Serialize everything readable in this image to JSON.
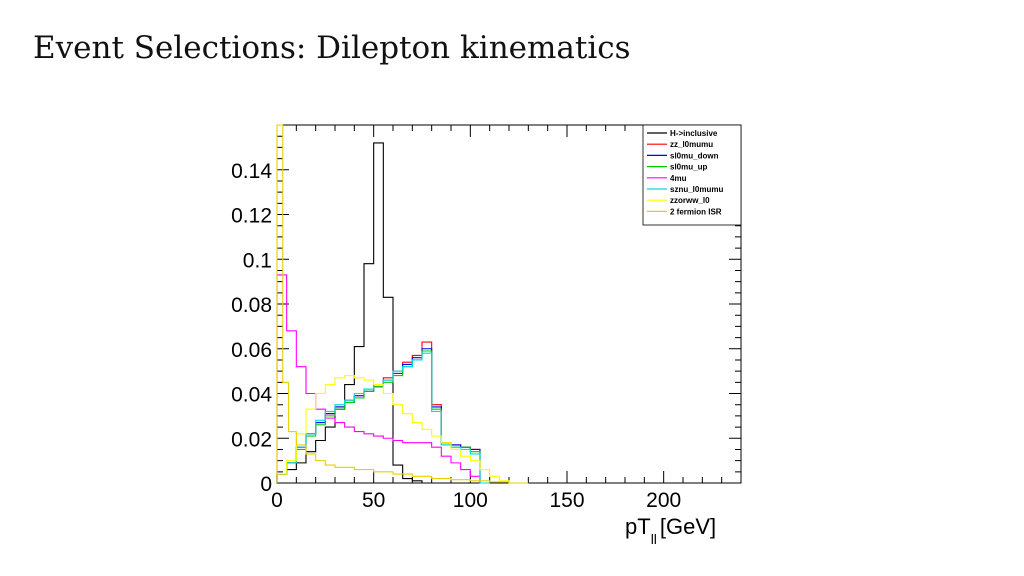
{
  "slide": {
    "title": "Event Selections: Dilepton kinematics"
  },
  "chart_data": {
    "type": "line",
    "xlabel": "pT",
    "xlabel_sub": "ll",
    "xlabel_unit": "[GeV]",
    "xlim": [
      0,
      240
    ],
    "ylim": [
      0,
      0.16
    ],
    "x_ticks": [
      0,
      50,
      100,
      150,
      200
    ],
    "y_ticks": [
      0,
      0.02,
      0.04,
      0.06,
      0.08,
      0.1,
      0.12,
      0.14
    ],
    "y_tick_labels": [
      "0",
      "0.02",
      "0.04",
      "0.06",
      "0.08",
      "0.1",
      "0.12",
      "0.14"
    ],
    "x_tick_labels": [
      "0",
      "50",
      "100",
      "150",
      "200"
    ],
    "legend_position": "top-right",
    "series": [
      {
        "name": "H->inclusive",
        "color": "#000000",
        "x": [
          0,
          5,
          10,
          15,
          20,
          25,
          30,
          35,
          40,
          45,
          50,
          55,
          60,
          65,
          70,
          75,
          80
        ],
        "values": [
          0.004,
          0.006,
          0.009,
          0.014,
          0.019,
          0.025,
          0.033,
          0.044,
          0.061,
          0.098,
          0.152,
          0.083,
          0.008,
          0.002,
          0.001,
          0,
          0
        ]
      },
      {
        "name": "zz_l0mumu",
        "color": "#ff0000",
        "x": [
          0,
          5,
          10,
          15,
          20,
          25,
          30,
          35,
          40,
          45,
          50,
          55,
          60,
          65,
          70,
          75,
          80,
          85,
          90,
          95,
          100,
          105
        ],
        "values": [
          0.004,
          0.009,
          0.016,
          0.022,
          0.027,
          0.031,
          0.034,
          0.037,
          0.039,
          0.042,
          0.044,
          0.047,
          0.05,
          0.054,
          0.057,
          0.063,
          0.035,
          0.018,
          0.017,
          0.016,
          0.015,
          0
        ]
      },
      {
        "name": "sl0mu_down",
        "color": "#0000ff",
        "x": [
          0,
          5,
          10,
          15,
          20,
          25,
          30,
          35,
          40,
          45,
          50,
          55,
          60,
          65,
          70,
          75,
          80,
          85,
          90,
          95,
          100,
          105
        ],
        "values": [
          0.004,
          0.009,
          0.016,
          0.022,
          0.027,
          0.031,
          0.034,
          0.036,
          0.039,
          0.041,
          0.043,
          0.046,
          0.049,
          0.053,
          0.056,
          0.06,
          0.034,
          0.018,
          0.017,
          0.016,
          0.015,
          0
        ]
      },
      {
        "name": "sl0mu_up",
        "color": "#00cc00",
        "x": [
          0,
          5,
          10,
          15,
          20,
          25,
          30,
          35,
          40,
          45,
          50,
          55,
          60,
          65,
          70,
          75,
          80,
          85,
          90,
          95,
          100,
          105
        ],
        "values": [
          0.004,
          0.009,
          0.015,
          0.021,
          0.026,
          0.03,
          0.033,
          0.036,
          0.038,
          0.041,
          0.043,
          0.045,
          0.048,
          0.052,
          0.055,
          0.059,
          0.033,
          0.017,
          0.016,
          0.016,
          0.014,
          0
        ]
      },
      {
        "name": "4mu",
        "color": "#ff00ff",
        "x": [
          0,
          5,
          10,
          15,
          20,
          25,
          30,
          35,
          40,
          45,
          50,
          55,
          60,
          65,
          70,
          75,
          80,
          85,
          90,
          95,
          100,
          105
        ],
        "values": [
          0.093,
          0.068,
          0.052,
          0.04,
          0.033,
          0.029,
          0.027,
          0.025,
          0.023,
          0.022,
          0.021,
          0.02,
          0.019,
          0.018,
          0.018,
          0.018,
          0.016,
          0.012,
          0.009,
          0.006,
          0.003,
          0
        ]
      },
      {
        "name": "sznu_l0mumu",
        "color": "#00dddd",
        "x": [
          0,
          5,
          10,
          15,
          20,
          25,
          30,
          35,
          40,
          45,
          50,
          55,
          60,
          65,
          70,
          75,
          80,
          85,
          90,
          95,
          100,
          105
        ],
        "values": [
          0.004,
          0.009,
          0.016,
          0.022,
          0.028,
          0.032,
          0.035,
          0.037,
          0.04,
          0.042,
          0.044,
          0.046,
          0.05,
          0.052,
          0.055,
          0.058,
          0.032,
          0.017,
          0.016,
          0.015,
          0.013,
          0
        ]
      },
      {
        "name": "zzorww_l0",
        "color": "#ffff00",
        "x": [
          0,
          5,
          10,
          15,
          20,
          25,
          30,
          35,
          40,
          45,
          50,
          55,
          60,
          65,
          70,
          75,
          80,
          85,
          90,
          95,
          100,
          105,
          110,
          115,
          120
        ],
        "values": [
          0.004,
          0.01,
          0.022,
          0.033,
          0.04,
          0.044,
          0.047,
          0.048,
          0.047,
          0.046,
          0.044,
          0.04,
          0.035,
          0.031,
          0.027,
          0.024,
          0.021,
          0.018,
          0.015,
          0.012,
          0.01,
          0.006,
          0.003,
          0.001,
          0
        ]
      },
      {
        "name": "2 fermion ISR",
        "color": "#e6d000",
        "x": [
          0,
          3,
          6,
          10,
          15,
          20,
          25,
          30,
          40,
          50,
          60,
          70,
          80,
          90,
          100,
          110,
          120
        ],
        "values": [
          0.16,
          0.045,
          0.023,
          0.017,
          0.013,
          0.01,
          0.008,
          0.007,
          0.006,
          0.005,
          0.004,
          0.003,
          0.002,
          0.0015,
          0.001,
          0.0005,
          0
        ]
      }
    ]
  }
}
